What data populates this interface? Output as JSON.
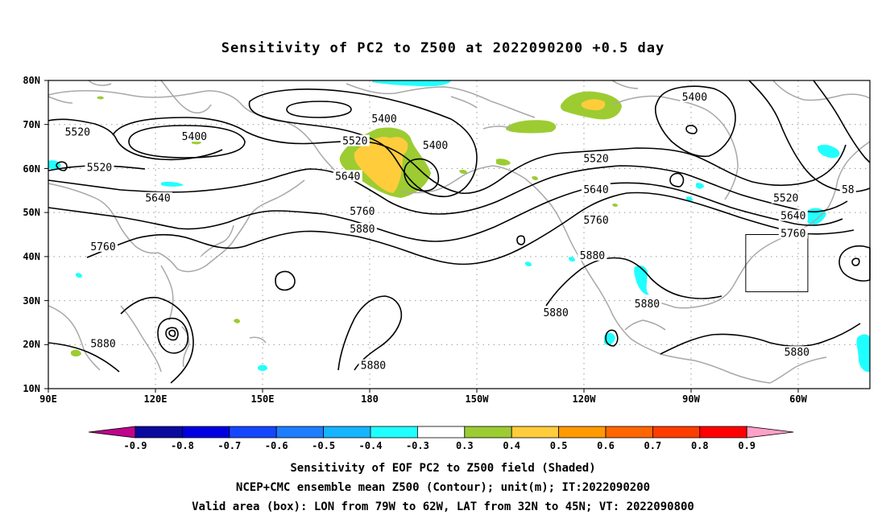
{
  "title": "Sensitivity of PC2 to Z500 at 2022090200 +0.5 day",
  "map": {
    "lat_labels": [
      "80N",
      "70N",
      "60N",
      "50N",
      "40N",
      "30N",
      "20N",
      "10N"
    ],
    "lon_labels": [
      "90E",
      "120E",
      "150E",
      "180",
      "150W",
      "120W",
      "90W",
      "60W"
    ],
    "contour_labels": [
      {
        "text": "5520",
        "lon": 98,
        "lat": 68
      },
      {
        "text": "5400",
        "lon": 130,
        "lat": 67
      },
      {
        "text": "5520",
        "lon": 104,
        "lat": 60
      },
      {
        "text": "5640",
        "lon": 120,
        "lat": 53
      },
      {
        "text": "5760",
        "lon": 105,
        "lat": 42
      },
      {
        "text": "5880",
        "lon": 105,
        "lat": 20
      },
      {
        "text": "5400",
        "lon": 182,
        "lat": 71
      },
      {
        "text": "5520",
        "lon": 174,
        "lat": 66
      },
      {
        "text": "5640",
        "lon": 172,
        "lat": 58
      },
      {
        "text": "5760",
        "lon": 176,
        "lat": 50
      },
      {
        "text": "5880",
        "lon": 176,
        "lat": 46
      },
      {
        "text": "5400",
        "lon": 196,
        "lat": 65
      },
      {
        "text": "5880",
        "lon": 179,
        "lat": 15
      },
      {
        "text": "5520",
        "lon": 240,
        "lat": 62
      },
      {
        "text": "5640",
        "lon": 240,
        "lat": 55
      },
      {
        "text": "5760",
        "lon": 240,
        "lat": 48
      },
      {
        "text": "5880",
        "lon": 239,
        "lat": 40
      },
      {
        "text": "5880",
        "lon": 229,
        "lat": 27
      },
      {
        "text": "5880",
        "lon": 254,
        "lat": 29
      },
      {
        "text": "5400",
        "lon": 267,
        "lat": 76
      },
      {
        "text": "5520",
        "lon": 292,
        "lat": 53
      },
      {
        "text": "5640",
        "lon": 294,
        "lat": 49
      },
      {
        "text": "5760",
        "lon": 294,
        "lat": 45
      },
      {
        "text": "5880",
        "lon": 295,
        "lat": 18
      },
      {
        "text": "58",
        "lon": 309,
        "lat": 55
      }
    ],
    "valid_box": {
      "lon_west": 281,
      "lon_east": 298,
      "lat_south": 32,
      "lat_north": 45
    }
  },
  "colorbar": {
    "labels": [
      "-0.9",
      "-0.8",
      "-0.7",
      "-0.6",
      "-0.5",
      "-0.4",
      "-0.3",
      "0.3",
      "0.4",
      "0.5",
      "0.6",
      "0.7",
      "0.8",
      "0.9"
    ],
    "colors": {
      "below": "#c0048c",
      "bins": [
        "#0a0a9e",
        "#0000e0",
        "#1446ff",
        "#1e7dff",
        "#15b4ff",
        "#20ffff",
        "#ffffff",
        "#9ccc32",
        "#ffcc3c",
        "#ff9a00",
        "#ff6600",
        "#ff3c00",
        "#ff0000"
      ],
      "above": "#ffa0c8"
    }
  },
  "footer": {
    "line1": "Sensitivity of EOF PC2 to Z500 field (Shaded)",
    "line2": "NCEP+CMC ensemble mean Z500 (Contour); unit(m); IT:2022090200",
    "line3": "Valid area (box): LON from 79W to 62W, LAT from 32N to 45N; VT: 2022090800"
  }
}
